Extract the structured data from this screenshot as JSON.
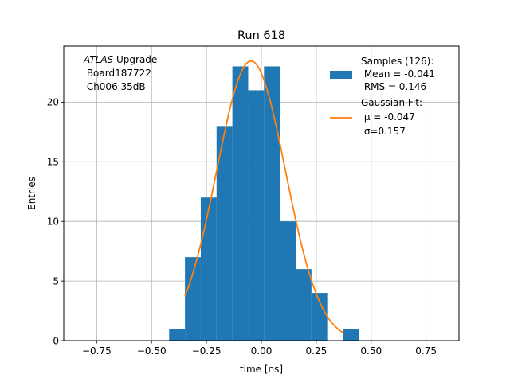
{
  "chart_data": {
    "type": "bar",
    "title": "Run 618",
    "xlabel": "time [ns]",
    "ylabel": "Entries",
    "xlim": [
      -0.9,
      0.9
    ],
    "ylim": [
      0,
      24.7
    ],
    "grid": true,
    "x_ticks": [
      -0.75,
      -0.5,
      -0.25,
      0.0,
      0.25,
      0.5,
      0.75
    ],
    "x_tick_labels": [
      "−0.75",
      "−0.50",
      "−0.25",
      "0.00",
      "0.25",
      "0.50",
      "0.75"
    ],
    "y_ticks": [
      0,
      5,
      10,
      15,
      20
    ],
    "y_tick_labels": [
      "0",
      "5",
      "10",
      "15",
      "20"
    ],
    "histogram": {
      "bin_edges": [
        -0.42,
        -0.348,
        -0.276,
        -0.204,
        -0.132,
        -0.06,
        0.012,
        0.084,
        0.156,
        0.228,
        0.3,
        0.372,
        0.444
      ],
      "counts": [
        1,
        7,
        12,
        18,
        23,
        21,
        23,
        10,
        6,
        4,
        0,
        1
      ],
      "color": "#1f77b4"
    },
    "fit_curve": {
      "mu": -0.047,
      "sigma": 0.157,
      "amplitude": 23.45,
      "x_range": [
        -0.348,
        0.372
      ],
      "color": "#ff7f0e"
    },
    "annotation": {
      "line1_italic": "ATLAS",
      "line1_rest": " Upgrade",
      "line2": " Board187722",
      "line3": " Ch006 35dB"
    },
    "legend": {
      "placement": "top-right",
      "entries": [
        {
          "type": "patch",
          "color": "#1f77b4",
          "lines": [
            "Samples (126):",
            " Mean = -0.041",
            " RMS = 0.146"
          ]
        },
        {
          "type": "line",
          "color": "#ff7f0e",
          "lines": [
            "Gaussian Fit:",
            " μ = -0.047",
            " σ=0.157"
          ]
        }
      ]
    }
  }
}
